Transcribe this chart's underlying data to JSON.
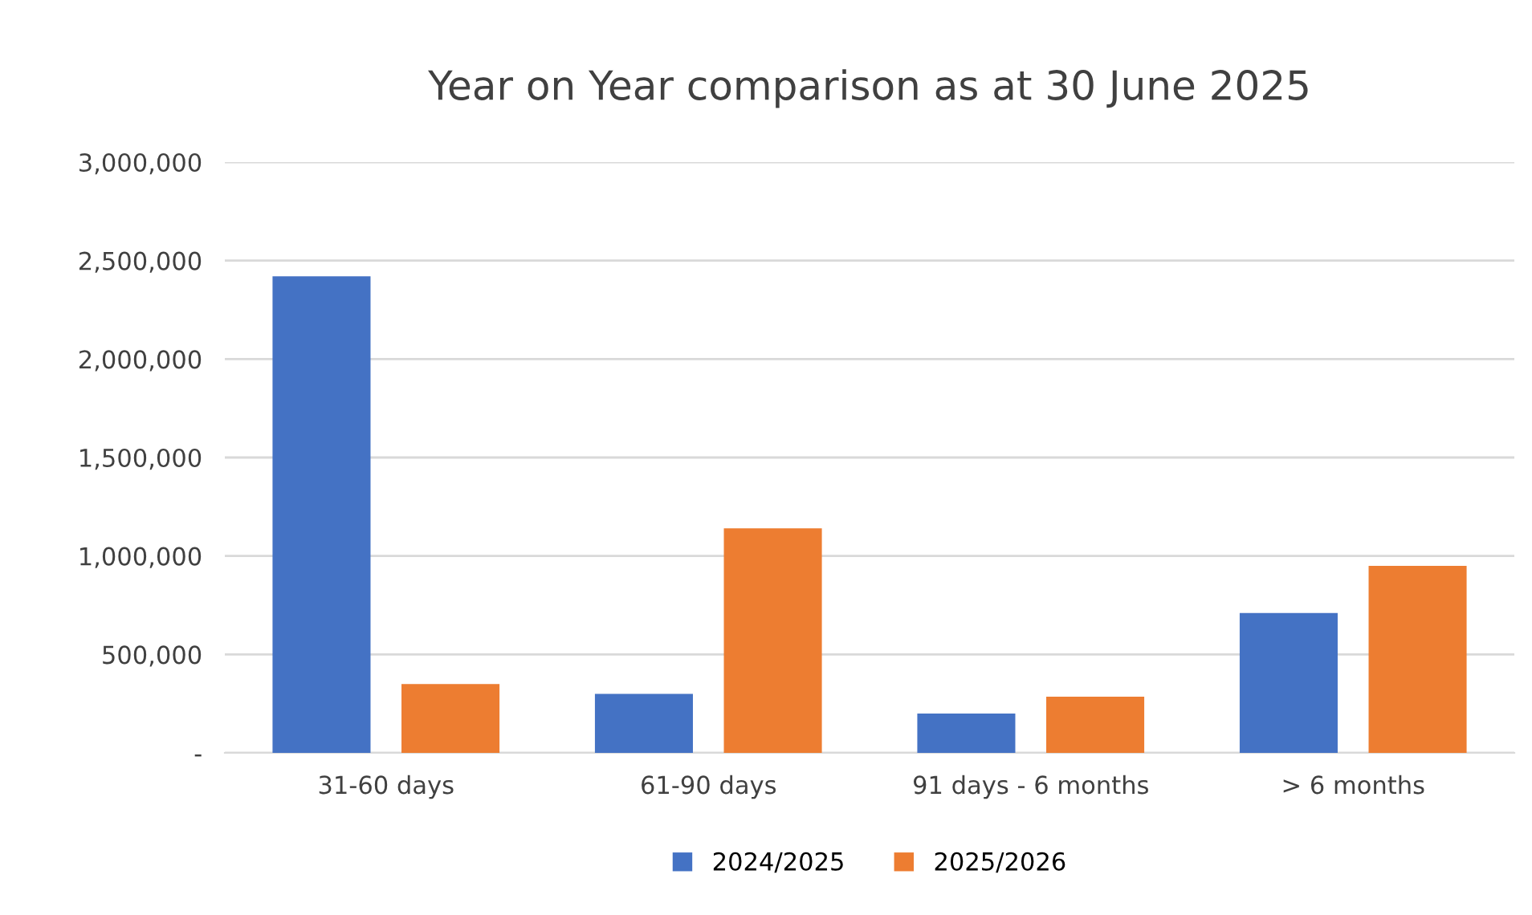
{
  "chart_data": {
    "type": "bar",
    "title": "Year on Year comparison as at 30 June 2025",
    "categories": [
      "31-60 days",
      "61-90 days",
      "91 days - 6 months",
      "> 6 months"
    ],
    "series": [
      {
        "name": "2024/2025",
        "color": "#4472c4",
        "values": [
          2420000,
          300000,
          200000,
          710000
        ]
      },
      {
        "name": "2025/2026",
        "color": "#ed7d31",
        "values": [
          350000,
          1140000,
          285000,
          950000
        ]
      }
    ],
    "ylim": [
      0,
      3000000
    ],
    "yticks": [
      {
        "value": 0,
        "label": "-"
      },
      {
        "value": 500000,
        "label": "500,000"
      },
      {
        "value": 1000000,
        "label": "1,000,000"
      },
      {
        "value": 1500000,
        "label": "1,500,000"
      },
      {
        "value": 2000000,
        "label": "2,000,000"
      },
      {
        "value": 2500000,
        "label": "2,500,000"
      },
      {
        "value": 3000000,
        "label": "3,000,000"
      }
    ],
    "grid": "y",
    "legend": "bottom"
  }
}
